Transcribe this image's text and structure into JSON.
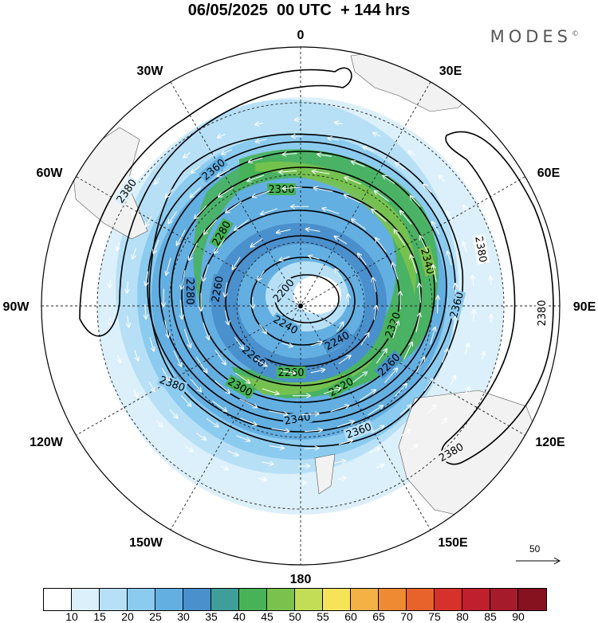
{
  "header": {
    "title": "06/05/2025  00 UTC  + 144 hrs",
    "brand": "MODES",
    "brand_mark": "©"
  },
  "map": {
    "projection": "south-polar-stereographic",
    "longitude_labels": [
      "0",
      "30E",
      "60E",
      "90E",
      "120E",
      "150E",
      "180",
      "150W",
      "120W",
      "90W",
      "60W",
      "30W"
    ],
    "contour_labels": [
      "2380",
      "2360",
      "2300",
      "2280",
      "2340",
      "2320",
      "2200",
      "2240",
      "2260",
      "2380",
      "2380",
      "2380",
      "2380",
      "2360",
      "2360",
      "2340",
      "2320",
      "2300",
      "2280",
      "2260",
      "2260",
      "2260",
      "2240"
    ],
    "reference_vector_label": "50",
    "land_color": "#f2f2f2",
    "contour_color": "#000000"
  },
  "colorbar": {
    "colors": [
      "#ffffff",
      "#dcf0fb",
      "#b7e0f7",
      "#8ccbf0",
      "#63afe2",
      "#4a90cd",
      "#3f9e9a",
      "#47b356",
      "#7ac24d",
      "#c3dd57",
      "#f6e35a",
      "#f4b146",
      "#ef8a32",
      "#e8622c",
      "#d6312b",
      "#c01f2d",
      "#a61b2c",
      "#861220"
    ],
    "tick_labels": [
      "10",
      "15",
      "20",
      "25",
      "30",
      "35",
      "40",
      "45",
      "50",
      "55",
      "60",
      "65",
      "70",
      "75",
      "80",
      "85",
      "90"
    ]
  }
}
